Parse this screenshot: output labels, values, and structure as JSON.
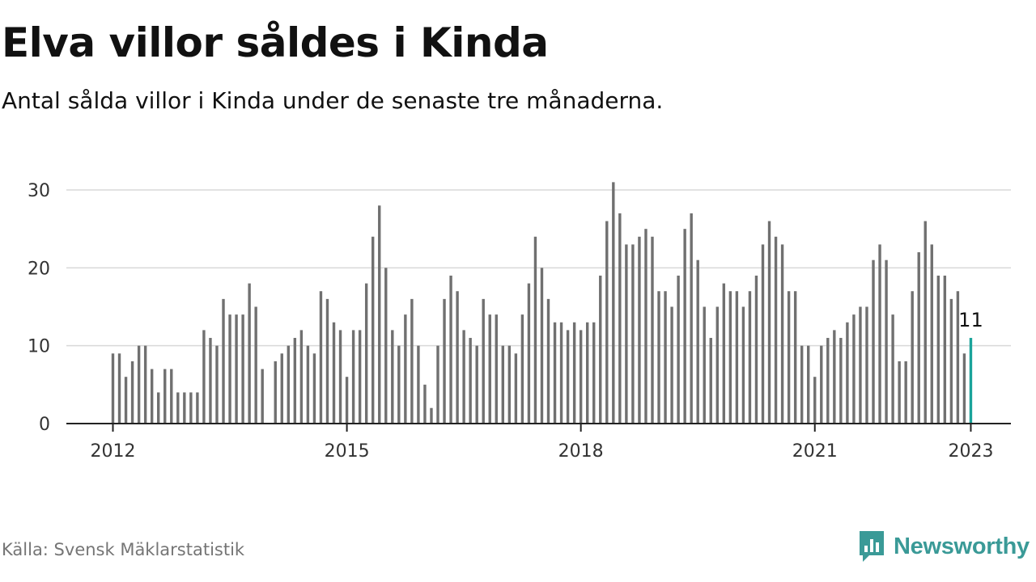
{
  "header": {
    "title": "Elva villor såldes i Kinda",
    "subtitle": "Antal sålda villor i Kinda under de senaste tre månaderna."
  },
  "footer": {
    "source": "Källa: Svensk Mäklarstatistik",
    "brand": "Newsworthy",
    "brand_icon": "newsworthy-logo-icon"
  },
  "colors": {
    "bar": "#707070",
    "highlight": "#1aa39a",
    "grid": "#d9d9d9",
    "axis": "#222222",
    "brand": "#3a9a97"
  },
  "chart_data": {
    "type": "bar",
    "title": "Elva villor såldes i Kinda",
    "xlabel": "",
    "ylabel": "",
    "ylim": [
      0,
      30
    ],
    "yticks": [
      "0",
      "10",
      "20",
      "30"
    ],
    "xticks": [
      "2012",
      "2015",
      "2018",
      "2021",
      "2023"
    ],
    "grid": true,
    "start": "2012-01",
    "frequency": "monthly",
    "values": [
      9,
      9,
      6,
      8,
      10,
      10,
      7,
      4,
      7,
      7,
      4,
      4,
      4,
      4,
      12,
      11,
      10,
      16,
      14,
      14,
      14,
      18,
      15,
      7,
      null,
      8,
      9,
      10,
      11,
      12,
      10,
      9,
      17,
      16,
      13,
      12,
      6,
      12,
      12,
      18,
      24,
      28,
      20,
      12,
      10,
      14,
      16,
      10,
      5,
      2,
      10,
      16,
      19,
      17,
      12,
      11,
      10,
      16,
      14,
      14,
      10,
      10,
      9,
      14,
      18,
      24,
      20,
      16,
      13,
      13,
      12,
      13,
      12,
      13,
      13,
      19,
      26,
      31,
      27,
      23,
      23,
      24,
      25,
      24,
      17,
      17,
      15,
      19,
      25,
      27,
      21,
      15,
      11,
      15,
      18,
      17,
      17,
      15,
      17,
      19,
      23,
      26,
      24,
      23,
      17,
      17,
      10,
      10,
      6,
      10,
      11,
      12,
      11,
      13,
      14,
      15,
      15,
      21,
      23,
      21,
      14,
      8,
      8,
      17,
      22,
      26,
      23,
      19,
      19,
      16,
      17,
      9,
      11
    ],
    "highlight_label": "11"
  }
}
